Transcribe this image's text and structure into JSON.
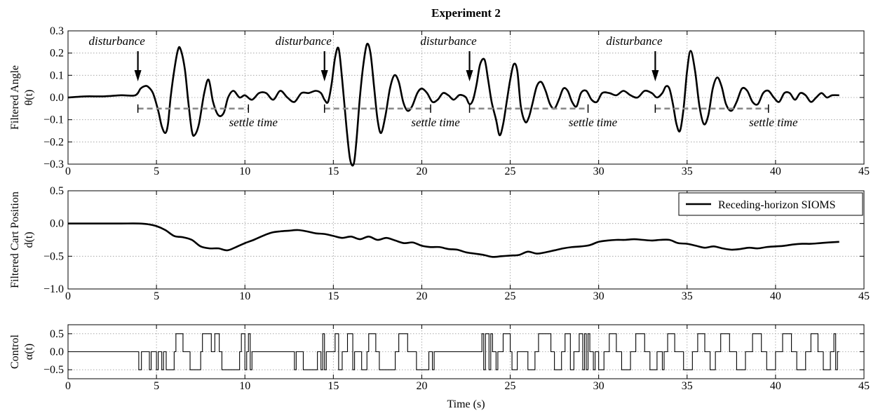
{
  "chart_data": [
    {
      "type": "line",
      "id": "angle",
      "title": "Experiment 2",
      "ylabel": [
        "Filtered Angle",
        "θ(t)"
      ],
      "xlabel": "",
      "xlim": [
        0,
        45
      ],
      "ylim": [
        -0.3,
        0.3
      ],
      "xticks": [
        0,
        5,
        10,
        15,
        20,
        25,
        30,
        35,
        40,
        45
      ],
      "yticks": [
        -0.3,
        -0.2,
        -0.1,
        0.0,
        0.1,
        0.2,
        0.3
      ],
      "ytick_format": 1,
      "grid": true,
      "series": [
        {
          "x": [
            0,
            1,
            2,
            3,
            3.8,
            4.1,
            4.3,
            4.5,
            4.8,
            5.1,
            5.3,
            5.5,
            5.65,
            5.8,
            6.0,
            6.2,
            6.35,
            6.6,
            6.8,
            7.0,
            7.15,
            7.4,
            7.7,
            7.95,
            8.2,
            8.5,
            8.8,
            9.05,
            9.35,
            9.7,
            10.0,
            10.4,
            10.8,
            11.2,
            11.6,
            12.0,
            12.4,
            12.8,
            13.2,
            13.6,
            14.0,
            14.3,
            14.5,
            14.7,
            14.9,
            15.1,
            15.3,
            15.5,
            15.75,
            15.95,
            16.15,
            16.3,
            16.5,
            16.7,
            16.9,
            17.1,
            17.3,
            17.5,
            17.7,
            17.95,
            18.2,
            18.45,
            18.7,
            18.95,
            19.2,
            19.45,
            19.75,
            20.0,
            20.3,
            20.6,
            20.9,
            21.2,
            21.5,
            21.8,
            22.1,
            22.3,
            22.5,
            22.7,
            22.9,
            23.1,
            23.3,
            23.55,
            23.75,
            23.95,
            24.2,
            24.4,
            24.6,
            24.8,
            25.0,
            25.2,
            25.4,
            25.6,
            25.85,
            26.05,
            26.25,
            26.5,
            26.75,
            27.0,
            27.25,
            27.5,
            27.75,
            28.0,
            28.25,
            28.5,
            28.75,
            29.0,
            29.3,
            29.6,
            29.9,
            30.2,
            30.6,
            31.0,
            31.4,
            31.8,
            32.2,
            32.6,
            33.0,
            33.3,
            33.6,
            33.8,
            34.0,
            34.2,
            34.4,
            34.6,
            34.8,
            35.0,
            35.2,
            35.45,
            35.7,
            35.95,
            36.2,
            36.45,
            36.7,
            36.95,
            37.2,
            37.5,
            37.8,
            38.1,
            38.4,
            38.7,
            39.0,
            39.3,
            39.6,
            39.9,
            40.2,
            40.5,
            40.8,
            41.1,
            41.4,
            41.7,
            42.0,
            42.3,
            42.6,
            42.9,
            43.2,
            43.6
          ],
          "y": [
            0.0,
            0.005,
            0.005,
            0.01,
            0.01,
            0.04,
            0.05,
            0.05,
            0.02,
            -0.06,
            -0.13,
            -0.16,
            -0.12,
            0.0,
            0.12,
            0.21,
            0.22,
            0.13,
            -0.02,
            -0.15,
            -0.17,
            -0.12,
            0.02,
            0.08,
            -0.02,
            -0.08,
            -0.07,
            0.0,
            0.03,
            0.0,
            0.01,
            -0.01,
            0.02,
            0.02,
            -0.01,
            0.03,
            0.0,
            -0.02,
            0.02,
            0.02,
            0.03,
            0.02,
            -0.01,
            -0.02,
            0.06,
            0.18,
            0.22,
            0.08,
            -0.14,
            -0.28,
            -0.3,
            -0.2,
            0.0,
            0.15,
            0.24,
            0.2,
            0.05,
            -0.1,
            -0.16,
            -0.08,
            0.04,
            0.1,
            0.07,
            -0.02,
            -0.06,
            -0.04,
            0.02,
            0.04,
            0.02,
            -0.02,
            -0.01,
            0.02,
            0.01,
            -0.01,
            0.01,
            0.01,
            0.0,
            -0.03,
            -0.01,
            0.06,
            0.15,
            0.17,
            0.08,
            -0.02,
            -0.1,
            -0.17,
            -0.12,
            -0.02,
            0.08,
            0.15,
            0.12,
            -0.04,
            -0.11,
            -0.09,
            -0.03,
            0.05,
            0.07,
            0.03,
            -0.03,
            -0.05,
            -0.01,
            0.04,
            0.03,
            -0.02,
            -0.04,
            0.02,
            0.03,
            -0.01,
            -0.02,
            0.02,
            0.02,
            0.01,
            0.03,
            0.01,
            0.0,
            0.03,
            0.02,
            0.0,
            0.02,
            0.05,
            0.04,
            -0.03,
            -0.12,
            -0.15,
            -0.05,
            0.12,
            0.21,
            0.12,
            -0.04,
            -0.12,
            -0.08,
            0.04,
            0.09,
            0.05,
            -0.03,
            -0.06,
            -0.02,
            0.04,
            0.03,
            -0.02,
            -0.03,
            0.02,
            0.03,
            0.0,
            -0.02,
            0.02,
            0.02,
            -0.01,
            0.02,
            0.01,
            -0.02,
            0.0,
            0.02,
            0.0,
            0.01,
            0.01
          ]
        }
      ],
      "annotations": {
        "disturbance_label": "disturbance",
        "settle_label": "settle time",
        "events": [
          {
            "x": 3.95,
            "settle_end": 10.2
          },
          {
            "x": 14.5,
            "settle_end": 20.5
          },
          {
            "x": 22.7,
            "settle_end": 29.4
          },
          {
            "x": 33.2,
            "settle_end": 39.6
          }
        ],
        "settle_y": -0.05
      }
    },
    {
      "type": "line",
      "id": "position",
      "ylabel": [
        "Filtered Cart Position",
        "d(t)"
      ],
      "xlabel": "",
      "xlim": [
        0,
        45
      ],
      "ylim": [
        -1.0,
        0.5
      ],
      "xticks": [
        0,
        5,
        10,
        15,
        20,
        25,
        30,
        35,
        40,
        45
      ],
      "yticks": [
        -1.0,
        -0.5,
        0.0,
        0.5
      ],
      "ytick_format": 1,
      "grid": true,
      "legend": {
        "placement": "top-right",
        "entries": [
          "Receding-horizon SIOMS"
        ]
      },
      "series": [
        {
          "name": "Receding-horizon SIOMS",
          "x": [
            0,
            1,
            2,
            3,
            4,
            4.5,
            5,
            5.5,
            6,
            6.5,
            7,
            7.5,
            8,
            8.5,
            9,
            9.5,
            10,
            10.5,
            11,
            11.5,
            12,
            12.5,
            13,
            13.5,
            14,
            14.5,
            15,
            15.5,
            16,
            16.5,
            17,
            17.5,
            18,
            18.5,
            19,
            19.5,
            20,
            20.5,
            21,
            21.5,
            22,
            22.5,
            23,
            23.5,
            24,
            24.5,
            25,
            25.5,
            26,
            26.5,
            27,
            27.5,
            28,
            28.5,
            29,
            29.5,
            30,
            30.5,
            31,
            31.5,
            32,
            32.5,
            33,
            33.5,
            34,
            34.5,
            35,
            35.5,
            36,
            36.5,
            37,
            37.5,
            38,
            38.5,
            39,
            39.5,
            40,
            40.5,
            41,
            41.5,
            42,
            42.5,
            43,
            43.6
          ],
          "y": [
            0.0,
            0.0,
            0.0,
            0.0,
            0.0,
            -0.01,
            -0.04,
            -0.1,
            -0.19,
            -0.21,
            -0.25,
            -0.35,
            -0.38,
            -0.38,
            -0.41,
            -0.36,
            -0.3,
            -0.25,
            -0.19,
            -0.14,
            -0.12,
            -0.11,
            -0.1,
            -0.12,
            -0.15,
            -0.16,
            -0.19,
            -0.22,
            -0.2,
            -0.24,
            -0.2,
            -0.25,
            -0.22,
            -0.26,
            -0.3,
            -0.29,
            -0.34,
            -0.36,
            -0.36,
            -0.39,
            -0.4,
            -0.44,
            -0.46,
            -0.48,
            -0.51,
            -0.5,
            -0.49,
            -0.48,
            -0.43,
            -0.46,
            -0.44,
            -0.41,
            -0.38,
            -0.36,
            -0.35,
            -0.33,
            -0.28,
            -0.26,
            -0.25,
            -0.25,
            -0.24,
            -0.25,
            -0.26,
            -0.25,
            -0.25,
            -0.3,
            -0.31,
            -0.34,
            -0.37,
            -0.35,
            -0.38,
            -0.4,
            -0.39,
            -0.37,
            -0.38,
            -0.36,
            -0.35,
            -0.34,
            -0.32,
            -0.31,
            -0.31,
            -0.3,
            -0.29,
            -0.28
          ]
        }
      ]
    },
    {
      "type": "line",
      "id": "control",
      "ylabel": [
        "Control",
        "α(t)"
      ],
      "xlabel": "Time (s)",
      "xlim": [
        0,
        45
      ],
      "ylim": [
        -0.75,
        0.75
      ],
      "xticks": [
        0,
        5,
        10,
        15,
        20,
        25,
        30,
        35,
        40,
        45
      ],
      "yticks": [
        -0.5,
        0.0,
        0.5
      ],
      "ytick_format": 1,
      "grid": true,
      "series": [
        {
          "step": true,
          "x0": 0,
          "x_end": 43.6,
          "segments": [
            [
              0,
              0
            ],
            [
              4.0,
              -0.5
            ],
            [
              4.15,
              0
            ],
            [
              4.6,
              -0.5
            ],
            [
              4.7,
              0
            ],
            [
              5.0,
              -0.5
            ],
            [
              5.1,
              0
            ],
            [
              5.3,
              -0.5
            ],
            [
              5.4,
              0
            ],
            [
              5.55,
              -0.5
            ],
            [
              6.0,
              0
            ],
            [
              6.1,
              0.5
            ],
            [
              6.5,
              0
            ],
            [
              6.9,
              -0.5
            ],
            [
              7.5,
              0
            ],
            [
              7.6,
              0.5
            ],
            [
              8.1,
              0
            ],
            [
              8.3,
              0.5
            ],
            [
              8.55,
              0
            ],
            [
              8.7,
              -0.5
            ],
            [
              9.7,
              0
            ],
            [
              9.8,
              0.5
            ],
            [
              10.0,
              -0.5
            ],
            [
              10.1,
              0
            ],
            [
              10.2,
              0.5
            ],
            [
              10.3,
              -0.5
            ],
            [
              10.4,
              0
            ],
            [
              12.8,
              -0.5
            ],
            [
              12.9,
              0
            ],
            [
              13.3,
              -0.5
            ],
            [
              14.1,
              0
            ],
            [
              14.3,
              -0.5
            ],
            [
              14.4,
              0.5
            ],
            [
              14.5,
              -0.5
            ],
            [
              14.6,
              0
            ],
            [
              15.1,
              0.5
            ],
            [
              15.3,
              -0.5
            ],
            [
              15.5,
              0
            ],
            [
              15.8,
              0.5
            ],
            [
              16.1,
              -0.5
            ],
            [
              16.2,
              0
            ],
            [
              16.6,
              -0.5
            ],
            [
              16.9,
              0
            ],
            [
              17.0,
              0.5
            ],
            [
              17.4,
              0
            ],
            [
              17.6,
              -0.5
            ],
            [
              18.5,
              0
            ],
            [
              18.7,
              0.5
            ],
            [
              19.2,
              0
            ],
            [
              19.7,
              -0.5
            ],
            [
              20.4,
              0
            ],
            [
              20.6,
              -0.5
            ],
            [
              20.7,
              0
            ],
            [
              23.4,
              0.5
            ],
            [
              23.5,
              -0.5
            ],
            [
              23.6,
              0.5
            ],
            [
              23.8,
              -0.5
            ],
            [
              23.9,
              0.5
            ],
            [
              24.0,
              0
            ],
            [
              24.2,
              -0.5
            ],
            [
              24.3,
              0
            ],
            [
              24.6,
              0.5
            ],
            [
              25.0,
              0
            ],
            [
              25.1,
              -0.5
            ],
            [
              25.4,
              0
            ],
            [
              26.0,
              -0.5
            ],
            [
              26.4,
              0
            ],
            [
              26.6,
              0.5
            ],
            [
              27.3,
              0
            ],
            [
              27.5,
              -0.5
            ],
            [
              27.9,
              0
            ],
            [
              28.1,
              0.5
            ],
            [
              28.4,
              -0.5
            ],
            [
              28.6,
              0
            ],
            [
              28.9,
              0.5
            ],
            [
              29.1,
              -0.5
            ],
            [
              29.2,
              0.5
            ],
            [
              29.3,
              -0.5
            ],
            [
              29.4,
              0.5
            ],
            [
              29.5,
              0
            ],
            [
              29.7,
              -0.5
            ],
            [
              29.8,
              0
            ],
            [
              30.0,
              -0.5
            ],
            [
              30.3,
              0
            ],
            [
              30.6,
              0.5
            ],
            [
              31.0,
              0
            ],
            [
              31.3,
              -0.5
            ],
            [
              31.8,
              0
            ],
            [
              32.1,
              0.5
            ],
            [
              32.6,
              0
            ],
            [
              32.9,
              -0.5
            ],
            [
              33.3,
              0
            ],
            [
              33.6,
              -0.5
            ],
            [
              33.7,
              0
            ],
            [
              33.9,
              0.5
            ],
            [
              34.3,
              0
            ],
            [
              34.8,
              -0.5
            ],
            [
              35.3,
              0
            ],
            [
              35.6,
              0.5
            ],
            [
              36.0,
              0
            ],
            [
              36.3,
              -0.5
            ],
            [
              36.6,
              0
            ],
            [
              36.9,
              0.5
            ],
            [
              37.4,
              0
            ],
            [
              37.8,
              -0.5
            ],
            [
              38.3,
              0
            ],
            [
              38.7,
              0.5
            ],
            [
              39.2,
              0
            ],
            [
              39.5,
              -0.5
            ],
            [
              40.0,
              0
            ],
            [
              40.4,
              0.5
            ],
            [
              40.9,
              0
            ],
            [
              41.2,
              -0.5
            ],
            [
              41.7,
              0
            ],
            [
              42.0,
              0.5
            ],
            [
              42.4,
              0
            ],
            [
              42.7,
              -0.5
            ],
            [
              43.1,
              0
            ],
            [
              43.3,
              0.5
            ],
            [
              43.4,
              -0.5
            ],
            [
              43.5,
              0
            ]
          ]
        }
      ]
    }
  ]
}
